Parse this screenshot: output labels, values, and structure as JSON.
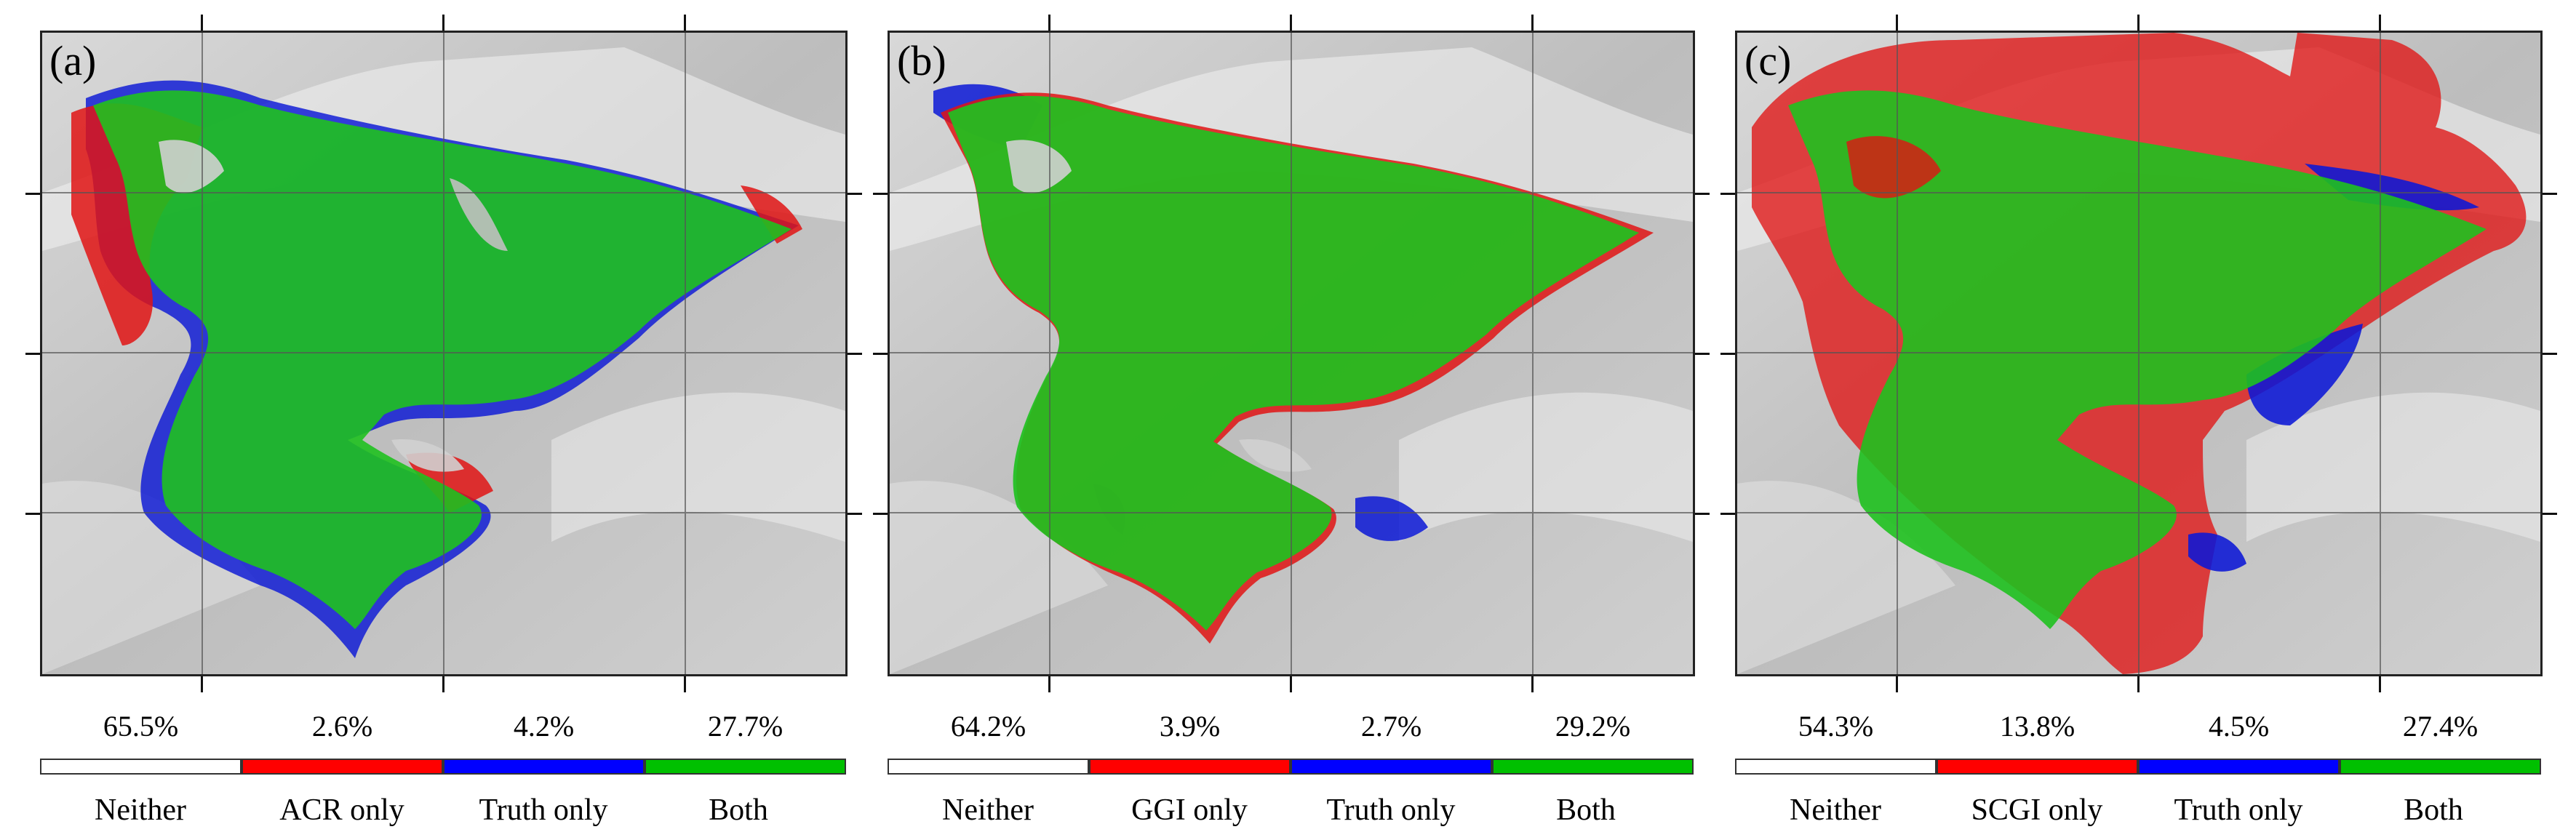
{
  "colors": {
    "neither": "#ffffff",
    "model_only": "#ff0000",
    "truth_only": "#0000ff",
    "both": "#00c000"
  },
  "panels": [
    {
      "letter": "(a)",
      "percentages": [
        "65.5%",
        "2.6%",
        "4.2%",
        "27.7%"
      ],
      "legend": [
        "Neither",
        "ACR only",
        "Truth only",
        "Both"
      ]
    },
    {
      "letter": "(b)",
      "percentages": [
        "64.2%",
        "3.9%",
        "2.7%",
        "29.2%"
      ],
      "legend": [
        "Neither",
        "GGI only",
        "Truth only",
        "Both"
      ]
    },
    {
      "letter": "(c)",
      "percentages": [
        "54.3%",
        "13.8%",
        "4.5%",
        "27.4%"
      ],
      "legend": [
        "Neither",
        "SCGI only",
        "Truth only",
        "Both"
      ]
    }
  ]
}
